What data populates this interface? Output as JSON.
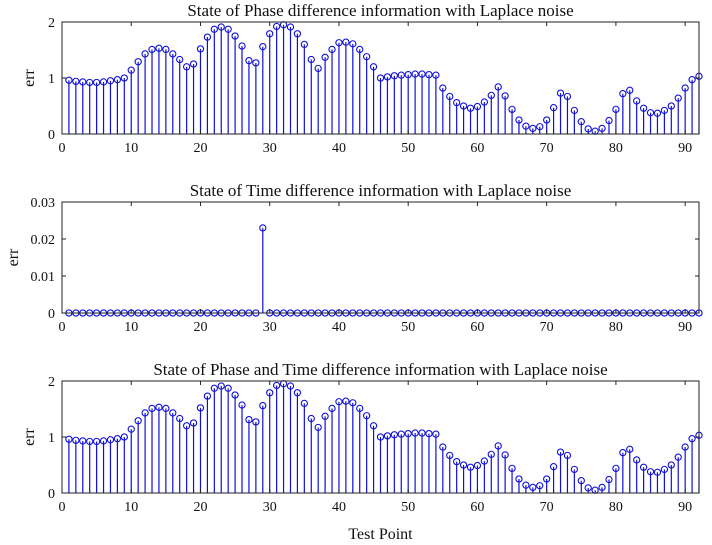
{
  "chart_data": [
    {
      "type": "stem",
      "title": "State of Phase difference information with Laplace noise",
      "xlabel": "",
      "ylabel": "err",
      "xlim": [
        0,
        92
      ],
      "ylim": [
        0,
        2
      ],
      "xticks": [
        0,
        10,
        20,
        30,
        40,
        50,
        60,
        70,
        80,
        90
      ],
      "yticks": [
        0,
        1,
        2
      ],
      "color": "#1010d8",
      "x": [
        1,
        2,
        3,
        4,
        5,
        6,
        7,
        8,
        9,
        10,
        11,
        12,
        13,
        14,
        15,
        16,
        17,
        18,
        19,
        20,
        21,
        22,
        23,
        24,
        25,
        26,
        27,
        28,
        29,
        30,
        31,
        32,
        33,
        34,
        35,
        36,
        37,
        38,
        39,
        40,
        41,
        42,
        43,
        44,
        45,
        46,
        47,
        48,
        49,
        50,
        51,
        52,
        53,
        54,
        55,
        56,
        57,
        58,
        59,
        60,
        61,
        62,
        63,
        64,
        65,
        66,
        67,
        68,
        69,
        70,
        71,
        72,
        73,
        74,
        75,
        76,
        77,
        78,
        79,
        80,
        81,
        82,
        83,
        84,
        85,
        86,
        87,
        88,
        89,
        90,
        91,
        92
      ],
      "y": [
        0.96,
        0.94,
        0.93,
        0.92,
        0.92,
        0.93,
        0.95,
        0.97,
        1.0,
        1.14,
        1.29,
        1.43,
        1.51,
        1.53,
        1.51,
        1.43,
        1.33,
        1.2,
        1.25,
        1.52,
        1.73,
        1.87,
        1.91,
        1.87,
        1.75,
        1.57,
        1.31,
        1.27,
        1.56,
        1.79,
        1.92,
        1.95,
        1.91,
        1.79,
        1.6,
        1.33,
        1.17,
        1.37,
        1.51,
        1.63,
        1.64,
        1.61,
        1.51,
        1.38,
        1.2,
        1.0,
        1.02,
        1.04,
        1.05,
        1.06,
        1.07,
        1.07,
        1.06,
        1.05,
        0.82,
        0.67,
        0.56,
        0.5,
        0.46,
        0.49,
        0.57,
        0.69,
        0.84,
        0.68,
        0.44,
        0.25,
        0.14,
        0.1,
        0.13,
        0.25,
        0.47,
        0.73,
        0.67,
        0.42,
        0.22,
        0.09,
        0.05,
        0.1,
        0.24,
        0.44,
        0.72,
        0.78,
        0.59,
        0.46,
        0.38,
        0.37,
        0.42,
        0.5,
        0.64,
        0.82,
        0.97,
        1.03
      ]
    },
    {
      "type": "stem",
      "title": "State of Time difference information with Laplace noise",
      "xlabel": "",
      "ylabel": "err",
      "xlim": [
        0,
        92
      ],
      "ylim": [
        0,
        0.03
      ],
      "xticks": [
        0,
        10,
        20,
        30,
        40,
        50,
        60,
        70,
        80,
        90
      ],
      "yticks": [
        0,
        0.01,
        0.02,
        0.03
      ],
      "color": "#1010d8",
      "x": [
        1,
        2,
        3,
        4,
        5,
        6,
        7,
        8,
        9,
        10,
        11,
        12,
        13,
        14,
        15,
        16,
        17,
        18,
        19,
        20,
        21,
        22,
        23,
        24,
        25,
        26,
        27,
        28,
        29,
        30,
        31,
        32,
        33,
        34,
        35,
        36,
        37,
        38,
        39,
        40,
        41,
        42,
        43,
        44,
        45,
        46,
        47,
        48,
        49,
        50,
        51,
        52,
        53,
        54,
        55,
        56,
        57,
        58,
        59,
        60,
        61,
        62,
        63,
        64,
        65,
        66,
        67,
        68,
        69,
        70,
        71,
        72,
        73,
        74,
        75,
        76,
        77,
        78,
        79,
        80,
        81,
        82,
        83,
        84,
        85,
        86,
        87,
        88,
        89,
        90,
        91,
        92
      ],
      "y": [
        0,
        0,
        0,
        0,
        0,
        0,
        0,
        0,
        0,
        0,
        0,
        0,
        0,
        0,
        0,
        0,
        0,
        0,
        0,
        0,
        0,
        0,
        0,
        0,
        0,
        0,
        0,
        0,
        0.023,
        0,
        0,
        0,
        0,
        0,
        0,
        0,
        0,
        0,
        0,
        0,
        0,
        0,
        0,
        0,
        0,
        0,
        0,
        0,
        0,
        0,
        0,
        0,
        0,
        0,
        0,
        0,
        0,
        0,
        0,
        0,
        0,
        0,
        0,
        0,
        0,
        0,
        0,
        0,
        0,
        0,
        0,
        0,
        0,
        0,
        0,
        0,
        0,
        0,
        0,
        0,
        0,
        0,
        0,
        0,
        0,
        0,
        0,
        0,
        0,
        0,
        0,
        0
      ]
    },
    {
      "type": "stem",
      "title": "State of Phase and Time difference information with Laplace noise",
      "xlabel": "Test Point",
      "ylabel": "err",
      "xlim": [
        0,
        92
      ],
      "ylim": [
        0,
        2
      ],
      "xticks": [
        0,
        10,
        20,
        30,
        40,
        50,
        60,
        70,
        80,
        90
      ],
      "yticks": [
        0,
        1,
        2
      ],
      "color": "#1010d8",
      "x": [
        1,
        2,
        3,
        4,
        5,
        6,
        7,
        8,
        9,
        10,
        11,
        12,
        13,
        14,
        15,
        16,
        17,
        18,
        19,
        20,
        21,
        22,
        23,
        24,
        25,
        26,
        27,
        28,
        29,
        30,
        31,
        32,
        33,
        34,
        35,
        36,
        37,
        38,
        39,
        40,
        41,
        42,
        43,
        44,
        45,
        46,
        47,
        48,
        49,
        50,
        51,
        52,
        53,
        54,
        55,
        56,
        57,
        58,
        59,
        60,
        61,
        62,
        63,
        64,
        65,
        66,
        67,
        68,
        69,
        70,
        71,
        72,
        73,
        74,
        75,
        76,
        77,
        78,
        79,
        80,
        81,
        82,
        83,
        84,
        85,
        86,
        87,
        88,
        89,
        90,
        91,
        92
      ],
      "y": [
        0.96,
        0.94,
        0.93,
        0.92,
        0.92,
        0.93,
        0.95,
        0.97,
        1.0,
        1.14,
        1.29,
        1.43,
        1.51,
        1.53,
        1.51,
        1.43,
        1.33,
        1.2,
        1.25,
        1.52,
        1.73,
        1.87,
        1.91,
        1.87,
        1.75,
        1.57,
        1.31,
        1.27,
        1.56,
        1.79,
        1.92,
        1.95,
        1.91,
        1.79,
        1.6,
        1.33,
        1.17,
        1.37,
        1.51,
        1.63,
        1.64,
        1.61,
        1.51,
        1.38,
        1.2,
        1.0,
        1.02,
        1.04,
        1.05,
        1.06,
        1.07,
        1.07,
        1.06,
        1.05,
        0.82,
        0.67,
        0.56,
        0.5,
        0.46,
        0.49,
        0.57,
        0.69,
        0.84,
        0.68,
        0.44,
        0.25,
        0.14,
        0.1,
        0.13,
        0.25,
        0.47,
        0.73,
        0.67,
        0.42,
        0.22,
        0.09,
        0.05,
        0.1,
        0.24,
        0.44,
        0.72,
        0.78,
        0.59,
        0.46,
        0.38,
        0.37,
        0.42,
        0.5,
        0.64,
        0.82,
        0.97,
        1.03
      ]
    }
  ]
}
